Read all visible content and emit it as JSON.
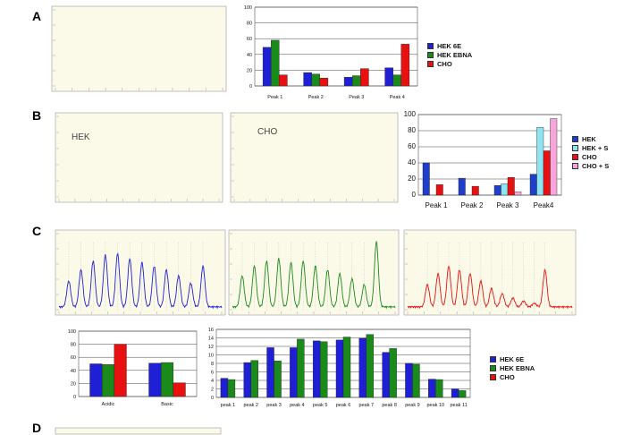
{
  "panels": {
    "a": "A",
    "b": "B",
    "c": "C",
    "d": "D"
  },
  "chrom_labels": {
    "hek": "HEK",
    "cho": "CHO"
  },
  "colors": {
    "hek6e": "#1f1fd6",
    "hekEbna": "#1a8a1a",
    "cho": "#e81010",
    "hekB": "#1f3fc9",
    "hekS": "#8fe4f2",
    "choB": "#e81010",
    "choS": "#f6a6d8",
    "chromBg": "#fbf9e8"
  },
  "chart_data": [
    {
      "id": "A-bar",
      "type": "bar",
      "categories": [
        "Peak 1",
        "Peak 2",
        "Peak 3",
        "Peak 4"
      ],
      "series": [
        {
          "name": "HEK 6E",
          "color": "#1f1fd6",
          "values": [
            49,
            17,
            11,
            23
          ]
        },
        {
          "name": "HEK EBNA",
          "color": "#1a8a1a",
          "values": [
            58,
            15,
            13,
            14
          ]
        },
        {
          "name": "CHO",
          "color": "#e81010",
          "values": [
            14,
            10,
            22,
            53
          ]
        }
      ],
      "ylim": [
        0,
        100
      ],
      "yticks": [
        "0",
        "20",
        "40",
        "60",
        "80",
        "100"
      ]
    },
    {
      "id": "B-bar",
      "type": "bar",
      "categories": [
        "Peak 1",
        "Peak 2",
        "Peak 3",
        "Peak4"
      ],
      "series": [
        {
          "name": "HEK",
          "color": "#1f3fc9",
          "values": [
            40,
            21,
            12,
            26
          ]
        },
        {
          "name": "HEK + S",
          "color": "#8fe4f2",
          "values": [
            0,
            0,
            14,
            84
          ]
        },
        {
          "name": "CHO",
          "color": "#e81010",
          "values": [
            13,
            11,
            22,
            55
          ]
        },
        {
          "name": "CHO + S",
          "color": "#f6a6d8",
          "values": [
            0,
            0,
            4,
            95
          ]
        }
      ],
      "ylim": [
        0,
        100
      ],
      "yticks": [
        "0",
        "20",
        "40",
        "60",
        "80",
        "100"
      ]
    },
    {
      "id": "C-bar-small",
      "type": "bar",
      "categories": [
        "Acidic",
        "Basic"
      ],
      "series": [
        {
          "name": "HEK 6E",
          "color": "#1f1fd6",
          "values": [
            50,
            51
          ]
        },
        {
          "name": "HEK EBNA",
          "color": "#1a8a1a",
          "values": [
            49,
            52
          ]
        },
        {
          "name": "CHO",
          "color": "#e81010",
          "values": [
            80,
            21
          ]
        }
      ],
      "ylim": [
        0,
        100
      ],
      "yticks": [
        "0",
        "20",
        "40",
        "60",
        "80",
        "100"
      ]
    },
    {
      "id": "C-bar-large",
      "type": "bar",
      "categories": [
        "peak 1",
        "peak 2",
        "peak 3",
        "peak 4",
        "peak 5",
        "peak 6",
        "peak 7",
        "peak 8",
        "peak 9",
        "peak 10",
        "peak 11"
      ],
      "series": [
        {
          "name": "HEK 6E",
          "color": "#1f1fd6",
          "values": [
            4.5,
            8.2,
            11.7,
            11.7,
            13.3,
            13.5,
            13.9,
            10.6,
            8.0,
            4.3,
            2.0
          ]
        },
        {
          "name": "HEK EBNA",
          "color": "#1a8a1a",
          "values": [
            4.2,
            8.7,
            8.6,
            13.7,
            13.1,
            14.2,
            14.8,
            11.5,
            7.8,
            4.2,
            1.6
          ]
        }
      ],
      "ylim": [
        0,
        16
      ],
      "yticks": [
        "0",
        "2",
        "4",
        "6",
        "8",
        "10",
        "12",
        "14",
        "16"
      ]
    }
  ],
  "legend_a": [
    {
      "label": "HEK 6E",
      "color": "#1f1fd6"
    },
    {
      "label": "HEK EBNA",
      "color": "#1a8a1a"
    },
    {
      "label": "CHO",
      "color": "#e81010"
    }
  ],
  "legend_b": [
    {
      "label": "HEK",
      "color": "#1f3fc9"
    },
    {
      "label": "HEK + S",
      "color": "#8fe4f2"
    },
    {
      "label": "CHO",
      "color": "#e81010"
    },
    {
      "label": "CHO + S",
      "color": "#f6a6d8"
    }
  ],
  "legend_c": [
    {
      "label": "HEK 6E",
      "color": "#1f1fd6"
    },
    {
      "label": "HEK EBNA",
      "color": "#1a8a1a"
    },
    {
      "label": "CHO",
      "color": "#e81010"
    }
  ]
}
